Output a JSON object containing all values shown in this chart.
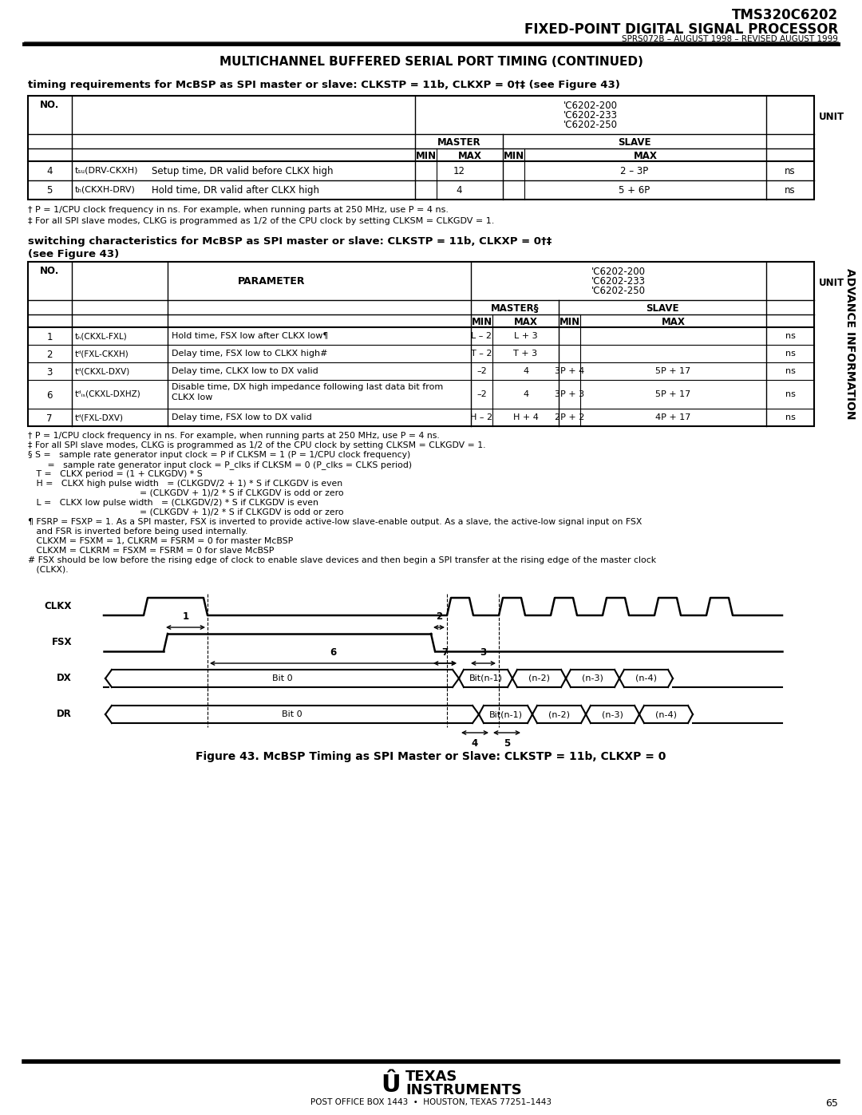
{
  "page_title_line1": "TMS320C6202",
  "page_title_line2": "FIXED-POINT DIGITAL SIGNAL PROCESSOR",
  "doc_ref": "SPRS072B – AUGUST 1998 – REVISED AUGUST 1999",
  "section_title": "MULTICHANNEL BUFFERED SERIAL PORT TIMING (CONTINUED)",
  "timing_req_title": "timing requirements for McBSP as SPI master or slave: CLKSTP = 11b, CLKXP = 0†‡ (see Figure 43)",
  "switching_char_title_1": "switching characteristics for McBSP as SPI master or slave: CLKSTP = 11b, CLKXP = 0†‡",
  "switching_char_title_2": "(see Figure 43)",
  "figure_caption": "Figure 43. McBSP Timing as SPI Master or Slave: CLKSTP = 11b, CLKXP = 0",
  "side_label": "ADVANCE INFORMATION",
  "page_number": "65",
  "timing_req_rows": [
    {
      "no": "4",
      "sym": "tₛᵤ(DRV-CKXH)",
      "desc": "Setup time, DR valid before CLKX high",
      "master_min": "12",
      "master_max": "",
      "slave_min": "2 – 3P",
      "slave_max": "",
      "unit": "ns"
    },
    {
      "no": "5",
      "sym": "tₕ(CKXH-DRV)",
      "desc": "Hold time, DR valid after CLKX high",
      "master_min": "4",
      "master_max": "",
      "slave_min": "5 + 6P",
      "slave_max": "",
      "unit": "ns"
    }
  ],
  "switching_rows": [
    {
      "no": "1",
      "sym": "tₕ(CKXL-FXL)",
      "desc": "Hold time, FSX low after CLKX low¶",
      "master_min": "L – 2",
      "master_max": "L + 3",
      "slave_min": "",
      "slave_max": "",
      "unit": "ns"
    },
    {
      "no": "2",
      "sym": "tᵈ(FXL-CKXH)",
      "desc": "Delay time, FSX low to CLKX high#",
      "master_min": "T – 2",
      "master_max": "T + 3",
      "slave_min": "",
      "slave_max": "",
      "unit": "ns"
    },
    {
      "no": "3",
      "sym": "tᵈ(CKXL-DXV)",
      "desc": "Delay time, CLKX low to DX valid",
      "master_min": "–2",
      "master_max": "4",
      "slave_min": "3P + 4",
      "slave_max": "5P + 17",
      "unit": "ns"
    },
    {
      "no": "6",
      "sym": "tᵈᵢₛ(CKXL-DXHZ)",
      "desc_line1": "Disable time, DX high impedance following last data bit from",
      "desc_line2": "CLKX low",
      "master_min": "–2",
      "master_max": "4",
      "slave_min": "3P + 3",
      "slave_max": "5P + 17",
      "unit": "ns"
    },
    {
      "no": "7",
      "sym": "tᵈ(FXL-DXV)",
      "desc": "Delay time, FSX low to DX valid",
      "master_min": "H – 2",
      "master_max": "H + 4",
      "slave_min": "2P + 2",
      "slave_max": "4P + 17",
      "unit": "ns"
    }
  ],
  "timing_notes_lines": [
    "† P = 1/CPU clock frequency in ns. For example, when running parts at 250 MHz, use P = 4 ns.",
    "‡ For all SPI slave modes, CLKG is programmed as 1/2 of the CPU clock by setting CLKSM = CLKGDV = 1."
  ],
  "switching_notes_lines": [
    "† P = 1/CPU clock frequency in ns. For example, when running parts at 250 MHz, use P = 4 ns.",
    "‡ For all SPI slave modes, CLKG is programmed as 1/2 of the CPU clock by setting CLKSM = CLKGDV = 1.",
    "§ S =   sample rate generator input clock = P if CLKSM = 1 (P = 1/CPU clock frequency)",
    "       =   sample rate generator input clock = P_clks if CLKSM = 0 (P_clks = CLKS period)",
    "   T =   CLKX period = (1 + CLKGDV) * S",
    "   H =   CLKX high pulse width   = (CLKGDV/2 + 1) * S if CLKGDV is even",
    "                                        = (CLKGDV + 1)/2 * S if CLKGDV is odd or zero",
    "   L =   CLKX low pulse width   = (CLKGDV/2) * S if CLKGDV is even",
    "                                        = (CLKGDV + 1)/2 * S if CLKGDV is odd or zero",
    "¶ FSRP = FSXP = 1. As a SPI master, FSX is inverted to provide active-low slave-enable output. As a slave, the active-low signal input on FSX",
    "   and FSR is inverted before being used internally.",
    "   CLKXM = FSXM = 1, CLKRM = FSRM = 0 for master McBSP",
    "   CLKXM = CLKRM = FSXM = FSRM = 0 for slave McBSP",
    "# FSX should be low before the rising edge of clock to enable slave devices and then begin a SPI transfer at the rising edge of the master clock",
    "   (CLKX)."
  ],
  "bg_color": "#ffffff"
}
